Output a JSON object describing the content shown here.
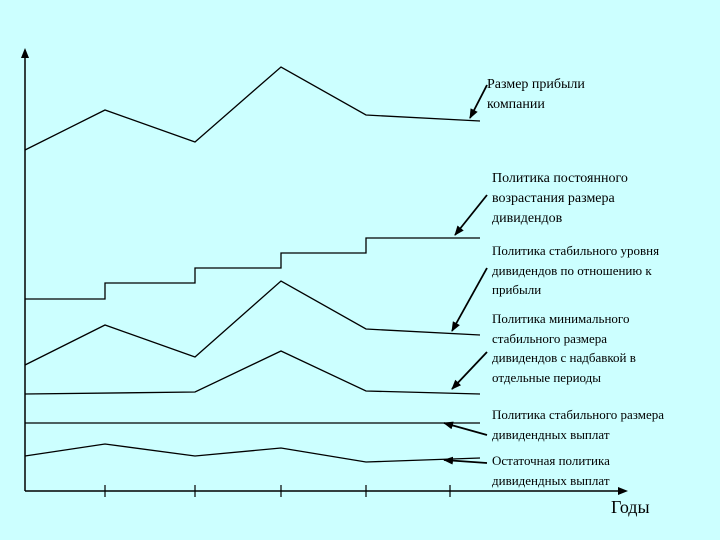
{
  "labels": {
    "profit": "Размер прибыли\nкомпании",
    "constant_growth": "Политика постоянного\nвозрастания размера\nдивидендов",
    "stable_ratio": "Политика стабильного уровня\nдивидендов по отношению к\nприбыли",
    "minimal_stable": "Политика минимального\nстабильного размера\nдивидендов с надбавкой в\nотдельные периоды",
    "stable_size": "Политика стабильного размера\nдивидендных выплат",
    "residual": "Остаточная политика\nдивидендных выплат"
  },
  "axis": {
    "x_label": "Годы"
  },
  "colors": {
    "background": "#ccffff",
    "line": "#000000"
  }
}
